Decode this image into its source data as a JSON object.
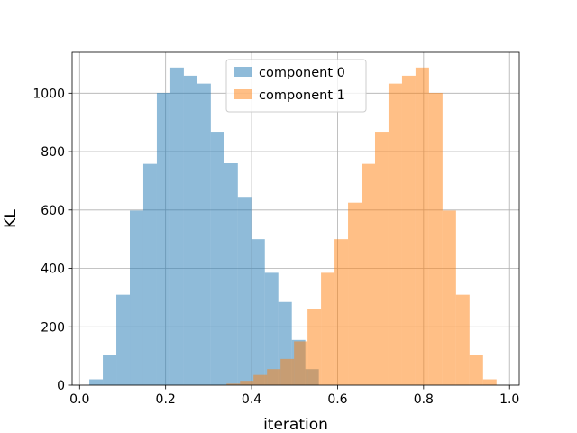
{
  "chart_data": {
    "type": "bar",
    "title": "",
    "xlabel": "iteration",
    "ylabel": "KL",
    "xlim": [
      -0.0174,
      1.0226
    ],
    "ylim": [
      0,
      1140
    ],
    "x_ticks": [
      0.0,
      0.2,
      0.4,
      0.6,
      0.8,
      1.0
    ],
    "x_tick_labels": [
      "0.0",
      "0.2",
      "0.4",
      "0.6",
      "0.8",
      "1.0"
    ],
    "y_ticks": [
      0,
      200,
      400,
      600,
      800,
      1000
    ],
    "y_tick_labels": [
      "0",
      "200",
      "400",
      "600",
      "800",
      "1000"
    ],
    "grid": true,
    "legend_position": "upper-center",
    "series": [
      {
        "name": "component 0",
        "color": "#1f77b4",
        "alpha": 0.5,
        "bin_start": 0.0226,
        "bin_width": 0.0314,
        "counts": [
          20,
          105,
          310,
          598,
          758,
          1001,
          1088,
          1060,
          1033,
          868,
          760,
          645,
          500,
          385,
          285,
          155,
          55,
          0
        ]
      },
      {
        "name": "component 1",
        "color": "#ff7f0e",
        "alpha": 0.5,
        "bin_start": 0.3417,
        "bin_width": 0.0314,
        "counts": [
          5,
          15,
          35,
          55,
          90,
          150,
          262,
          385,
          500,
          625,
          758,
          868,
          1033,
          1060,
          1088,
          1001,
          598,
          310,
          105,
          20
        ]
      }
    ]
  }
}
